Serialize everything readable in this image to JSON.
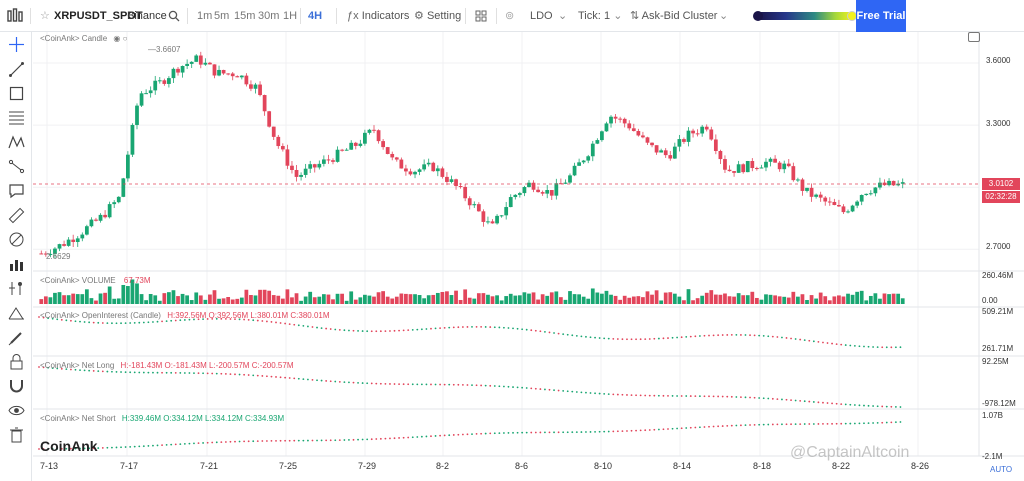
{
  "toolbar": {
    "symbol": "XRPUSDT_SPOT",
    "exchange": "Binance",
    "timeframes": [
      "1m",
      "5m",
      "15m",
      "30m",
      "1H",
      "4H"
    ],
    "active_timeframe": "4H",
    "indicators_label": "Indicators",
    "setting_label": "Setting",
    "ldo_label": "LDO",
    "tick_label": "Tick:",
    "tick_value": "1",
    "cluster_label": "Ask-Bid Cluster",
    "free_trial_label": "Free Trial"
  },
  "sidebar": {
    "icons": [
      "crosshair-icon",
      "trend-line-icon",
      "rectangle-icon",
      "fib-lines-icon",
      "pattern-icon",
      "path-icon",
      "comment-icon",
      "ruler-icon",
      "brush-icon",
      "bar-chart-icon",
      "indicator-icon",
      "eraser-icon",
      "pencil-icon",
      "lock-icon",
      "magnet-icon",
      "eye-icon",
      "trash-icon"
    ]
  },
  "panes": {
    "candle_label": "<CoinAnk> Candle",
    "high_marker": "3.6607",
    "low_marker": "2.6629",
    "volume_label": "<CoinAnk> VOLUME",
    "volume_value": "67.73M",
    "oi_label": "<CoinAnk> OpenInterest (Candle)",
    "oi_values": "H:392.56M  O:392.56M  L:380.01M  C:380.01M",
    "netlong_label": "<CoinAnk> Net Long",
    "netlong_values": "H:-181.43M  O:-181.43M  L:-200.57M  C:-200.57M",
    "netshort_label": "<CoinAnk> Net Short",
    "netshort_values": "H:339.46M  O:334.12M  L:334.12M  C:334.93M"
  },
  "price_axis": {
    "ticks": [
      "3.6000",
      "3.3000",
      "2.7000"
    ],
    "current_price": "3.0102",
    "countdown": "02:32:28",
    "volume_ticks": [
      "260.46M",
      "0.00"
    ],
    "oi_ticks": [
      "509.21M",
      "261.71M"
    ],
    "netlong_ticks": [
      "92.25M",
      "-978.12M"
    ],
    "netshort_ticks": [
      "1.07B",
      "-2.1M"
    ]
  },
  "time_axis": {
    "dates": [
      "7-13",
      "7-17",
      "7-21",
      "7-25",
      "7-29",
      "8-2",
      "8-6",
      "8-10",
      "8-14",
      "8-18",
      "8-22",
      "8-26"
    ]
  },
  "branding": {
    "logo": "CoinAnk",
    "watermark": "@CaptainAltcoin",
    "auto_label": "AUTO"
  },
  "colors": {
    "up": "#19a672",
    "down": "#e2455b",
    "accent": "#2f66f4"
  },
  "chart_data": {
    "type": "candlestick",
    "x": [
      "7-13",
      "7-17",
      "7-21",
      "7-25",
      "7-29",
      "8-2",
      "8-6",
      "8-10",
      "8-14",
      "8-18",
      "8-22",
      "8-26"
    ],
    "price_closes": [
      2.68,
      2.72,
      2.78,
      2.85,
      2.95,
      3.45,
      3.5,
      3.58,
      3.62,
      3.55,
      3.55,
      3.48,
      3.22,
      3.05,
      3.1,
      3.15,
      3.2,
      3.28,
      3.12,
      3.08,
      3.1,
      3.02,
      2.92,
      2.8,
      2.95,
      3.02,
      2.97,
      3.05,
      3.18,
      3.35,
      3.3,
      3.2,
      3.15,
      3.25,
      3.3,
      3.08,
      3.1,
      3.12,
      3.1,
      2.98,
      2.93,
      2.88,
      2.98,
      3.01,
      3.01
    ],
    "ylim": [
      2.6,
      3.75
    ],
    "current_price": 3.0102,
    "high": 3.6607,
    "low": 2.6629
  }
}
